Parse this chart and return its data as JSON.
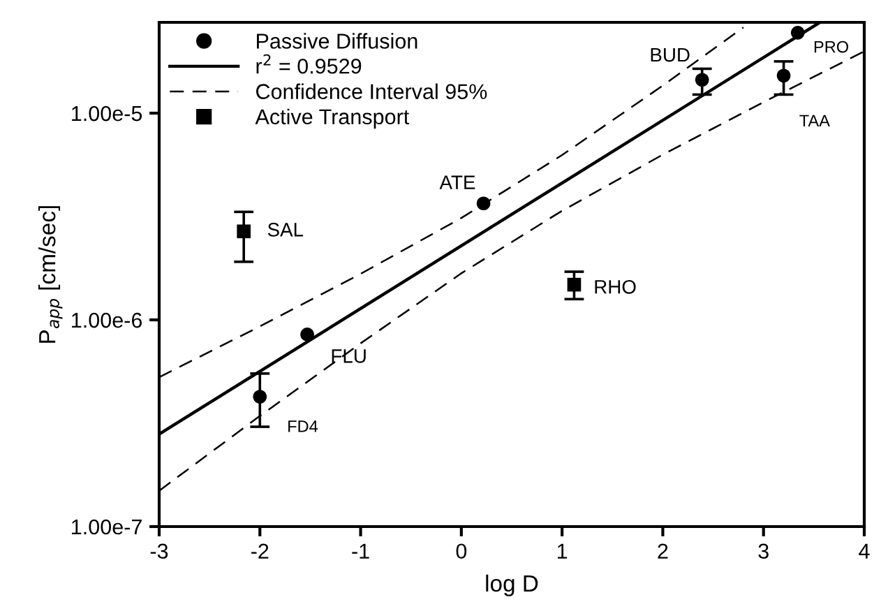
{
  "chart_data": {
    "type": "scatter",
    "xlabel": "log D",
    "ylabel": "P$_{app}$ [cm/sec]",
    "log": "y",
    "xlim": [
      -3,
      4
    ],
    "xticks": [
      -3,
      -2,
      -1,
      0,
      1,
      2,
      3,
      4
    ],
    "ylim": [
      1e-07,
      2.75e-05
    ],
    "yticks": [
      {
        "value": 1e-07,
        "label": "1.00e-7"
      },
      {
        "value": 1e-06,
        "label": "1.00e-6"
      },
      {
        "value": 1e-05,
        "label": "1.00e-5"
      }
    ],
    "grid": false,
    "legend": "top left",
    "series": [
      {
        "name": "Passive Diffusion",
        "marker": "circle",
        "color": "#000000",
        "x": [
          -2,
          -1.53,
          0.22,
          2.39,
          3.2,
          3.34
        ],
        "values": [
          4.25e-07,
          8.5e-07,
          3.66e-06,
          1.45e-05,
          1.52e-05,
          2.45e-05
        ],
        "errors": [
          [
            3.04e-07,
            5.5e-07
          ],
          null,
          null,
          [
            1.23e-05,
            1.64e-05
          ],
          [
            1.23e-05,
            1.78e-05
          ],
          null
        ]
      },
      {
        "name": "r$^{2}$ = 0.9529",
        "type": "line",
        "line_style": "solid",
        "color": "#000000",
        "x": [
          -3,
          3.56
        ],
        "values": [
          2.8e-07,
          2.75e-05
        ]
      },
      {
        "name": "Confidence Interval 95%",
        "type": "line",
        "line_style": "dashed",
        "color": "#000000",
        "x": [
          -3,
          -2,
          -1,
          0,
          1,
          2,
          2.8
        ],
        "values": [
          5.28e-07,
          9.3e-07,
          1.67e-06,
          3.11e-06,
          6.27e-06,
          1.36e-05,
          2.6e-05
        ]
      },
      {
        "type": "line",
        "line_style": "dashed",
        "color": "#000000",
        "x": [
          -3,
          -2,
          -1,
          0,
          1,
          2,
          3,
          4
        ],
        "values": [
          1.49e-07,
          3.43e-07,
          7.7e-07,
          1.68e-06,
          3.37e-06,
          6.3e-06,
          1.13e-05,
          1.99e-05
        ]
      },
      {
        "name": "Active Transport",
        "marker": "square",
        "color": "#000000",
        "x": [
          -2.16,
          1.12
        ],
        "values": [
          2.68e-06,
          1.48e-06
        ],
        "errors": [
          [
            1.91e-06,
            3.33e-06
          ],
          [
            1.26e-06,
            1.71e-06
          ]
        ]
      }
    ],
    "annotations": [
      {
        "text": "SAL",
        "x": -2.16,
        "y": 2.68e-06
      },
      {
        "text": "RHO",
        "x": 1.12,
        "y": 1.48e-06
      },
      {
        "text": "FLU",
        "x": -1.53,
        "y": 8.5e-07
      },
      {
        "text": "FD4",
        "x": -2,
        "y": 4.25e-07
      },
      {
        "text": "ATE",
        "x": 0.22,
        "y": 3.66e-06
      },
      {
        "text": "BUD",
        "x": 2.39,
        "y": 1.45e-05
      },
      {
        "text": "PRO",
        "x": 3.34,
        "y": 2.45e-05
      },
      {
        "text": "TAA",
        "x": 3.2,
        "y": 1.52e-05
      }
    ]
  }
}
